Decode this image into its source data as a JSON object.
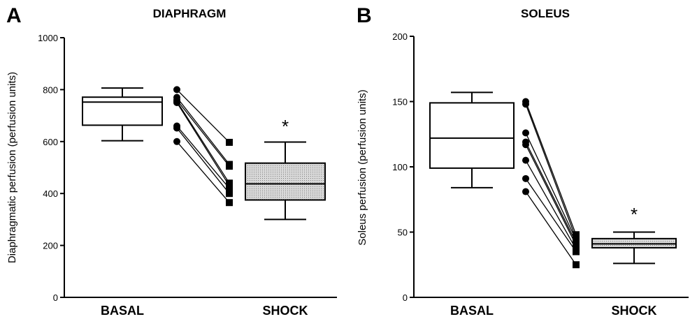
{
  "chart_data": [
    {
      "panel_letter": "A",
      "type": "box-plot-with-paired-points",
      "title": "DIAPHRAGM",
      "ylabel": "Diaphragmatic perfusion (perfusion units)",
      "xlabel": "",
      "ylim": [
        0,
        1000
      ],
      "yticks": [
        "0",
        "200",
        "400",
        "600",
        "800",
        "1000"
      ],
      "categories": [
        "BASAL",
        "SHOCK"
      ],
      "boxes": [
        {
          "category": "BASAL",
          "min": 603,
          "q1": 663,
          "median": 752,
          "q3": 771,
          "max": 806,
          "fill": "#ffffff"
        },
        {
          "category": "SHOCK",
          "min": 300,
          "q1": 375,
          "median": 437,
          "q3": 517,
          "max": 598,
          "fill": "#cccccc"
        }
      ],
      "paired_points": [
        [
          800,
          597
        ],
        [
          770,
          512
        ],
        [
          760,
          505
        ],
        [
          755,
          440
        ],
        [
          750,
          430
        ],
        [
          660,
          420
        ],
        [
          652,
          400
        ],
        [
          600,
          365
        ]
      ],
      "significance": {
        "category": "SHOCK",
        "label": "*"
      }
    },
    {
      "panel_letter": "B",
      "type": "box-plot-with-paired-points",
      "title": "SOLEUS",
      "ylabel": "Soleus perfusion (perfusion units)",
      "xlabel": "",
      "ylim": [
        0,
        200
      ],
      "yticks": [
        "0",
        "50",
        "100",
        "150",
        "200"
      ],
      "categories": [
        "BASAL",
        "SHOCK"
      ],
      "boxes": [
        {
          "category": "BASAL",
          "min": 84,
          "q1": 99,
          "median": 122,
          "q3": 149,
          "max": 157,
          "fill": "#ffffff"
        },
        {
          "category": "SHOCK",
          "min": 26,
          "q1": 38,
          "median": 41,
          "q3": 45,
          "max": 50,
          "fill": "#cccccc"
        }
      ],
      "paired_points": [
        [
          150,
          48
        ],
        [
          148,
          45
        ],
        [
          126,
          44
        ],
        [
          119,
          42
        ],
        [
          117,
          40
        ],
        [
          105,
          37
        ],
        [
          91,
          35
        ],
        [
          81,
          25
        ]
      ],
      "significance": {
        "category": "SHOCK",
        "label": "*"
      }
    }
  ]
}
